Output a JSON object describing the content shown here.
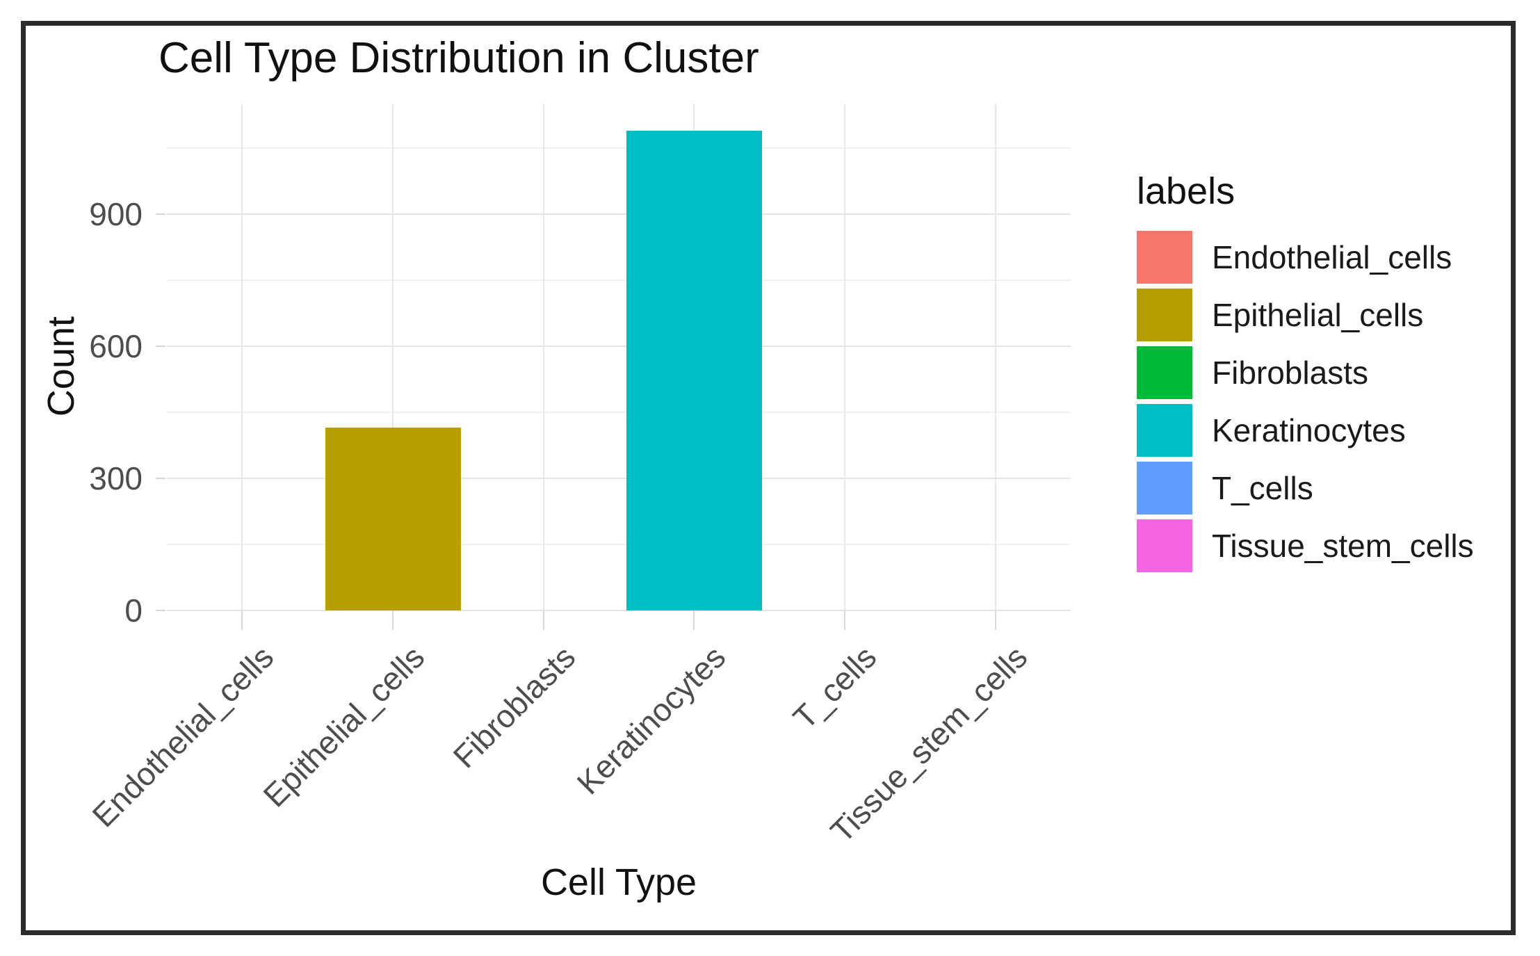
{
  "chart_data": {
    "type": "bar",
    "title": "Cell Type Distribution in Cluster",
    "xlabel": "Cell Type",
    "ylabel": "Count",
    "categories": [
      "Endothelial_cells",
      "Epithelial_cells",
      "Fibroblasts",
      "Keratinocytes",
      "T_cells",
      "Tissue_stem_cells"
    ],
    "values": [
      0,
      415,
      0,
      1090,
      0,
      0
    ],
    "bar_colors": [
      "#F8766D",
      "#B79F00",
      "#00BA38",
      "#00BFC4",
      "#619CFF",
      "#F564E3"
    ],
    "ylim": [
      0,
      1150
    ],
    "yticks": [
      0,
      300,
      600,
      900
    ],
    "minor_gridlines": [
      150,
      450,
      750,
      1050
    ],
    "grid": true,
    "legend_position": "right",
    "legend": {
      "title": "labels",
      "entries": [
        {
          "label": "Endothelial_cells",
          "color": "#F8766D"
        },
        {
          "label": "Epithelial_cells",
          "color": "#B79F00"
        },
        {
          "label": "Fibroblasts",
          "color": "#00BA38"
        },
        {
          "label": "Keratinocytes",
          "color": "#00BFC4"
        },
        {
          "label": "T_cells",
          "color": "#619CFF"
        },
        {
          "label": "Tissue_stem_cells",
          "color": "#F564E3"
        }
      ]
    }
  },
  "styles": {
    "background": "#ffffff",
    "frame_border": "#2b2b2b",
    "grid_major": "#e4e4e4",
    "grid_minor": "#f1f1f1",
    "grid_vertical": "#e7e7e7",
    "tick_mark": "#d9d9d9",
    "axis_text": "#4d4d4d",
    "title_text": "#101010"
  }
}
